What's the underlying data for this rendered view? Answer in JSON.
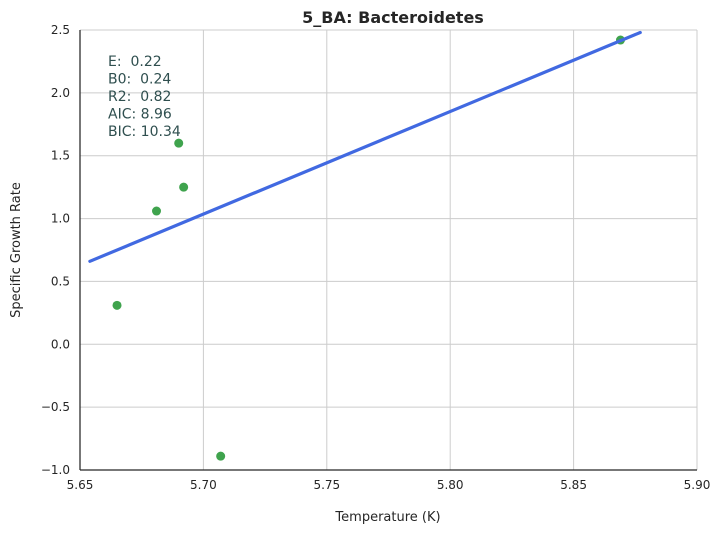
{
  "chart_data": {
    "type": "scatter",
    "title": "5_BA: Bacteroidetes",
    "xlabel": "Temperature (K)",
    "ylabel": "Specific Growth Rate",
    "xlim": [
      5.65,
      5.9
    ],
    "ylim": [
      -1.0,
      2.5
    ],
    "xticks": [
      5.65,
      5.7,
      5.75,
      5.8,
      5.85,
      5.9
    ],
    "xtick_labels": [
      "5.65",
      "5.70",
      "5.75",
      "5.80",
      "5.85",
      "5.90"
    ],
    "yticks": [
      -1.0,
      -0.5,
      0.0,
      0.5,
      1.0,
      1.5,
      2.0,
      2.5
    ],
    "ytick_labels": [
      "−1.0",
      "−0.5",
      "0.0",
      "0.5",
      "1.0",
      "1.5",
      "2.0",
      "2.5"
    ],
    "grid": true,
    "series": [
      {
        "type": "scatter",
        "color": "#3fa34d",
        "x": [
          5.665,
          5.681,
          5.69,
          5.692,
          5.707,
          5.869
        ],
        "y": [
          0.31,
          1.06,
          1.6,
          1.25,
          -0.89,
          2.42
        ]
      },
      {
        "type": "line",
        "color": "#4169e1",
        "x": [
          5.654,
          5.877
        ],
        "y": [
          0.66,
          2.48
        ]
      }
    ],
    "annotations": [
      "E:  0.22",
      "B0:  0.24",
      "R2:  0.82",
      "AIC: 8.96",
      "BIC: 10.34"
    ]
  }
}
